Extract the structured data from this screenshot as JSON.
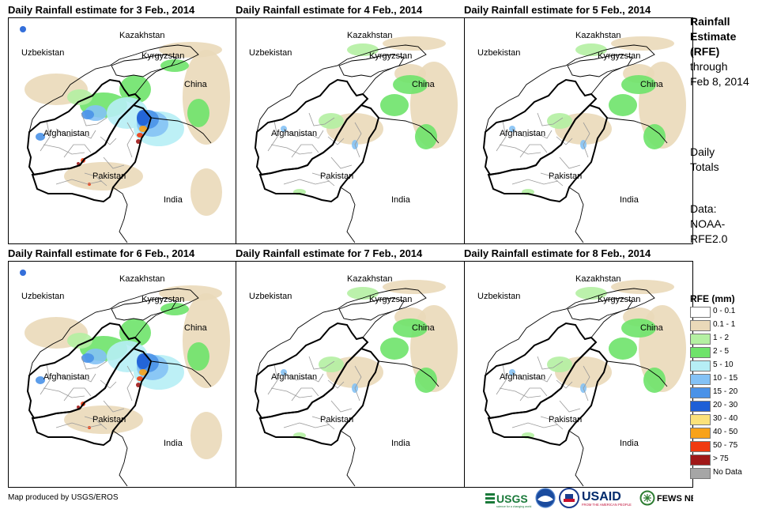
{
  "panels": [
    {
      "title": "Daily Rainfall estimate for 3 Feb., 2014",
      "rain": "heavy"
    },
    {
      "title": "Daily Rainfall estimate for 4 Feb., 2014",
      "rain": "light"
    },
    {
      "title": "Daily Rainfall estimate for 5 Feb., 2014",
      "rain": "light"
    },
    {
      "title": "Daily Rainfall estimate for 6 Feb., 2014",
      "rain": "heavy"
    },
    {
      "title": "Daily Rainfall estimate for 7 Feb., 2014",
      "rain": "light"
    },
    {
      "title": "Daily Rainfall estimate for 8 Feb., 2014",
      "rain": "light"
    }
  ],
  "map_labels": {
    "kazakhstan": "Kazakhstan",
    "uzbekistan": "Uzbekistan",
    "kyrgyzstan": "Kyrgyzstan",
    "china": "China",
    "afghanistan": "Afghanistan",
    "pakistan": "Pakistan",
    "india": "India"
  },
  "sidebar": {
    "rfe_line1": "Rainfall",
    "rfe_line2": "Estimate",
    "rfe_line3": "(RFE)",
    "through": "through",
    "date": "Feb 8, 2014",
    "daily1": "Daily",
    "daily2": "Totals",
    "data1": "Data:",
    "data2": "NOAA-",
    "data3": "RFE2.0"
  },
  "legend": {
    "title": "RFE (mm)",
    "items": [
      {
        "label": "0 - 0.1",
        "color": "#ffffff"
      },
      {
        "label": "0.1 - 1",
        "color": "#ead9b9"
      },
      {
        "label": "1 - 2",
        "color": "#b4f0a2"
      },
      {
        "label": "2 - 5",
        "color": "#6ee36a"
      },
      {
        "label": "5 - 10",
        "color": "#b6eef5"
      },
      {
        "label": "10 - 15",
        "color": "#84c2f5"
      },
      {
        "label": "15 - 20",
        "color": "#4a92e8"
      },
      {
        "label": "20 - 30",
        "color": "#1e5fd6"
      },
      {
        "label": "30 - 40",
        "color": "#fbe27a"
      },
      {
        "label": "40 - 50",
        "color": "#f8a21a"
      },
      {
        "label": "50 - 75",
        "color": "#f03a10"
      },
      {
        "label": "> 75",
        "color": "#a01818"
      },
      {
        "label": "No Data",
        "color": "#a6a6a6"
      }
    ]
  },
  "credit": "Map produced by USGS/EROS",
  "logos": {
    "usgs": "USGS",
    "usgs_tagline": "science for a changing world",
    "noaa": "NOAA",
    "usaid": "USAID",
    "usaid_tagline": "FROM THE AMERICAN PEOPLE",
    "fews": "FEWS NET"
  }
}
